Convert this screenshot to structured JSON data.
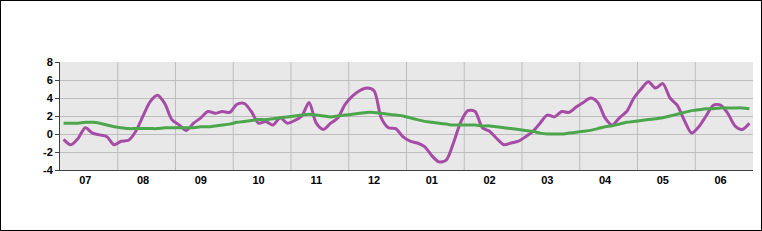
{
  "chart_data": {
    "type": "line",
    "categories": [
      null,
      null,
      null,
      "07",
      null,
      null,
      null,
      null,
      null,
      null,
      null,
      "08",
      null,
      null,
      null,
      null,
      null,
      null,
      null,
      "09",
      null,
      null,
      null,
      null,
      null,
      null,
      null,
      "10",
      null,
      null,
      null,
      null,
      null,
      null,
      null,
      "11",
      null,
      null,
      null,
      null,
      null,
      null,
      null,
      "12",
      null,
      null,
      null,
      null,
      null,
      null,
      null,
      "01",
      null,
      null,
      null,
      null,
      null,
      null,
      null,
      "02",
      null,
      null,
      null,
      null,
      null,
      null,
      null,
      "03",
      null,
      null,
      null,
      null,
      null,
      null,
      null,
      "04",
      null,
      null,
      null,
      null,
      null,
      null,
      null,
      "05",
      null,
      null,
      null,
      null,
      null,
      null,
      null,
      "06",
      null,
      null,
      null,
      null
    ],
    "series": [
      {
        "color": "#a64ca6",
        "values": [
          -0.6,
          -1.2,
          -0.5,
          0.7,
          0.1,
          -0.1,
          -0.3,
          -1.2,
          -0.8,
          -0.7,
          0.3,
          2.0,
          3.6,
          4.3,
          3.4,
          1.6,
          1.0,
          0.4,
          1.2,
          1.8,
          2.5,
          2.3,
          2.5,
          2.4,
          3.3,
          3.4,
          2.5,
          1.2,
          1.4,
          1.0,
          1.8,
          1.2,
          1.5,
          2.0,
          3.5,
          1.2,
          0.5,
          1.2,
          1.8,
          3.3,
          4.2,
          4.8,
          5.1,
          4.8,
          1.8,
          0.7,
          0.6,
          -0.3,
          -0.8,
          -1.0,
          -1.4,
          -2.4,
          -3.1,
          -2.9,
          -1.0,
          1.3,
          2.6,
          2.5,
          0.7,
          0.3,
          -0.5,
          -1.2,
          -1.0,
          -0.8,
          -0.3,
          0.3,
          1.2,
          2.1,
          1.9,
          2.5,
          2.4,
          3.0,
          3.5,
          4.0,
          3.5,
          1.8,
          1.0,
          1.8,
          2.5,
          4.0,
          5.0,
          5.8,
          5.1,
          5.6,
          4.0,
          3.2,
          1.5,
          0.1,
          0.8,
          2.0,
          3.2,
          3.2,
          2.3,
          0.9,
          0.5,
          1.2
        ]
      },
      {
        "color": "#4ca64c",
        "values": [
          1.2,
          1.2,
          1.2,
          1.3,
          1.3,
          1.2,
          1.0,
          0.8,
          0.7,
          0.6,
          0.6,
          0.6,
          0.6,
          0.6,
          0.7,
          0.7,
          0.7,
          0.7,
          0.7,
          0.8,
          0.8,
          0.9,
          1.0,
          1.1,
          1.3,
          1.4,
          1.5,
          1.6,
          1.6,
          1.7,
          1.8,
          1.9,
          2.0,
          2.1,
          2.2,
          2.1,
          2.0,
          1.9,
          2.0,
          2.1,
          2.2,
          2.3,
          2.4,
          2.4,
          2.3,
          2.2,
          2.1,
          2.0,
          1.8,
          1.6,
          1.4,
          1.3,
          1.2,
          1.1,
          1.0,
          1.0,
          1.0,
          1.0,
          0.9,
          0.9,
          0.8,
          0.7,
          0.6,
          0.5,
          0.4,
          0.3,
          0.1,
          0.0,
          0.0,
          0.0,
          0.1,
          0.2,
          0.3,
          0.4,
          0.6,
          0.8,
          0.9,
          1.1,
          1.3,
          1.4,
          1.5,
          1.6,
          1.7,
          1.8,
          2.0,
          2.2,
          2.4,
          2.6,
          2.7,
          2.8,
          2.8,
          2.9,
          2.9,
          2.9,
          2.9,
          2.8
        ]
      }
    ],
    "ylim": [
      -4,
      8
    ],
    "yticks": [
      -4,
      -2,
      0,
      2,
      4,
      6,
      8
    ],
    "grid": true
  }
}
